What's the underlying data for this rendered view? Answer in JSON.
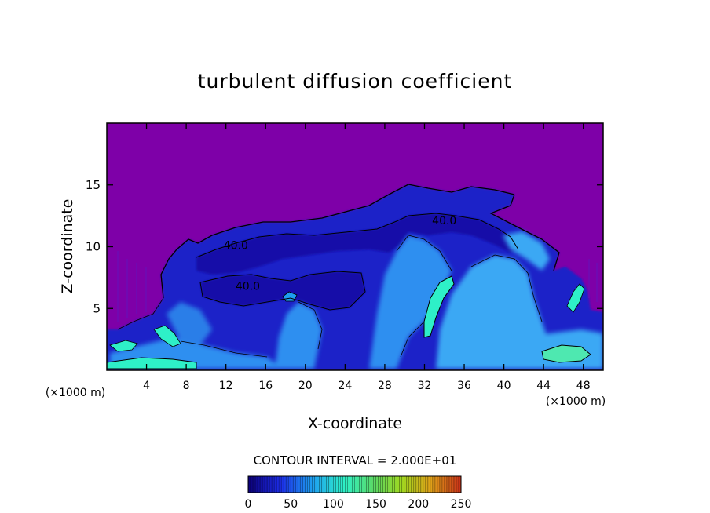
{
  "chart_data": {
    "type": "heatmap",
    "title": "turbulent diffusion coefficient",
    "xlabel": "X-coordinate",
    "ylabel": "Z-coordinate",
    "x_units": "(×1000 m)",
    "z_units": "(×1000 m)",
    "xlim": [
      0,
      50
    ],
    "ylim": [
      0,
      20
    ],
    "x_ticks": [
      4,
      8,
      12,
      16,
      20,
      24,
      28,
      32,
      36,
      40,
      44,
      48
    ],
    "y_ticks": [
      5,
      10,
      15
    ],
    "contour_interval_text": "CONTOUR INTERVAL = 2.000E+01",
    "contour_labels": [
      {
        "text": "40.0",
        "x": 13.0,
        "z": 9.8
      },
      {
        "text": "40.0",
        "x": 14.2,
        "z": 6.5
      },
      {
        "text": "40.0",
        "x": 34.0,
        "z": 11.8
      }
    ],
    "colorbar": {
      "ticks": [
        0,
        50,
        100,
        150,
        200,
        250
      ],
      "colors": [
        "#0c0078",
        "#1c2ce8",
        "#1e9ef0",
        "#2ef0c8",
        "#5ed860",
        "#a0d820",
        "#e0a018",
        "#c83018"
      ]
    },
    "background_color": "#7e00a8",
    "grid": false
  }
}
